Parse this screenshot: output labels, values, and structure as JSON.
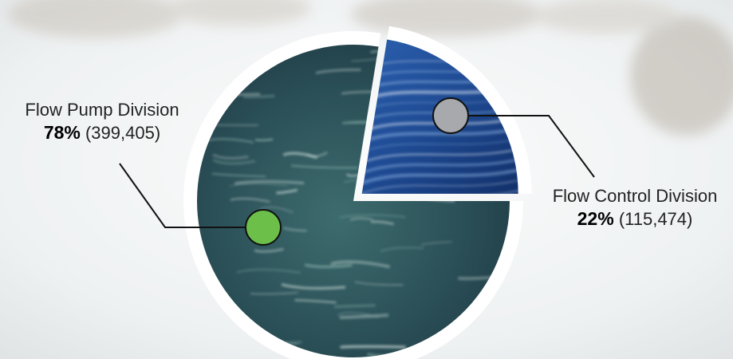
{
  "chart_data": {
    "type": "pie",
    "slices": [
      {
        "name": "Flow Pump Division",
        "percent_label": "78%",
        "value_label": "(399,405)",
        "value": 399405,
        "percent": 78,
        "color": "#6cc04a"
      },
      {
        "name": "Flow Control Division",
        "percent_label": "22%",
        "value_label": "(115,474)",
        "value": 115474,
        "percent": 22,
        "color": "#a7a9ac"
      }
    ],
    "exploded_slice": "Flow Control Division"
  },
  "colors": {
    "pump_marker": "#6cc04a",
    "control_marker": "#a7a9ac",
    "pump_texture": "#2a4e56",
    "control_texture": "#1e4a92"
  }
}
